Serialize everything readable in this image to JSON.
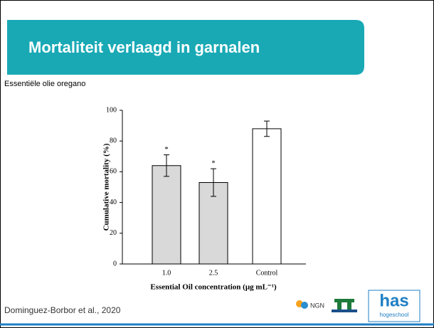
{
  "slide": {
    "title": "Mortaliteit verlaagd in garnalen",
    "subtitle": "Essentiële olie oregano",
    "citation": "Dominguez-Borbor et al., 2020",
    "logos": {
      "ngn": "NGN",
      "has": "has",
      "has_sub": "hogeschool"
    }
  },
  "chart_data": {
    "type": "bar",
    "categories": [
      "1.0",
      "2.5",
      "Control"
    ],
    "values": [
      64,
      53,
      88
    ],
    "errors": [
      7,
      9,
      5
    ],
    "colors": [
      "#d9d9d9",
      "#d9d9d9",
      "#ffffff"
    ],
    "significance": [
      "*",
      "*",
      null
    ],
    "ylabel": "Cumulative mortality  (%)",
    "xlabel": "Essential Oil concentration (µg mL⁻¹)",
    "ylim": [
      0,
      100
    ],
    "yticks": [
      0,
      20,
      40,
      60,
      80,
      100
    ],
    "grid": false
  }
}
